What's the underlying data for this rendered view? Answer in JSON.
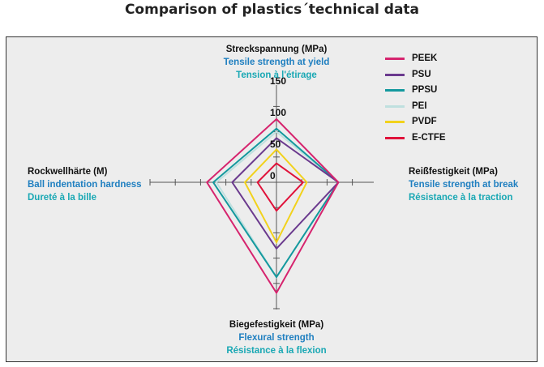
{
  "page_title": "Comparison of plastics´technical data",
  "axes": {
    "top": {
      "line1": "Streckspannung (MPa)",
      "line2": "Tensile strength at yield",
      "line3": "Tension à l'étirage"
    },
    "right": {
      "line1": "Reißfestigkeit (MPa)",
      "line2": "Tensile strength at break",
      "line3": "Résistance à la traction"
    },
    "bottom": {
      "line1": "Biegefestigkeit (MPa)",
      "line2": "Flexural strength",
      "line3": "Résistance à la flexion"
    },
    "left": {
      "line1": "Rockwellhärte (M)",
      "line2": "Ball indentation hardness",
      "line3": "Dureté à la bille"
    }
  },
  "chart_data": {
    "type": "radar",
    "title": "Comparison of plastics´technical data",
    "axes": [
      "Streckspannung (MPa)",
      "Reißfestigkeit (MPa)",
      "Biegefestigkeit (MPa)",
      "Rockwellhärte (M)"
    ],
    "scale": {
      "min": 0,
      "max": 150,
      "ticks": [
        0,
        50,
        100,
        150
      ],
      "tick_labels": [
        "0",
        "50",
        "100",
        "150"
      ]
    },
    "series": [
      {
        "name": "PEEK",
        "color": "#d6246e",
        "values": [
          100,
          98,
          175,
          110
        ]
      },
      {
        "name": "PSU",
        "color": "#6b3a8e",
        "values": [
          70,
          98,
          105,
          70
        ]
      },
      {
        "name": "PPSU",
        "color": "#14999e",
        "values": [
          85,
          98,
          150,
          100
        ]
      },
      {
        "name": "PEI",
        "color": "#bfe0df",
        "values": [
          80,
          98,
          150,
          95
        ]
      },
      {
        "name": "PVDF",
        "color": "#f2d21c",
        "values": [
          52,
          48,
          95,
          50
        ]
      },
      {
        "name": "E-CTFE",
        "color": "#e0123a",
        "values": [
          30,
          42,
          45,
          30
        ]
      }
    ],
    "legend": "top-right"
  }
}
